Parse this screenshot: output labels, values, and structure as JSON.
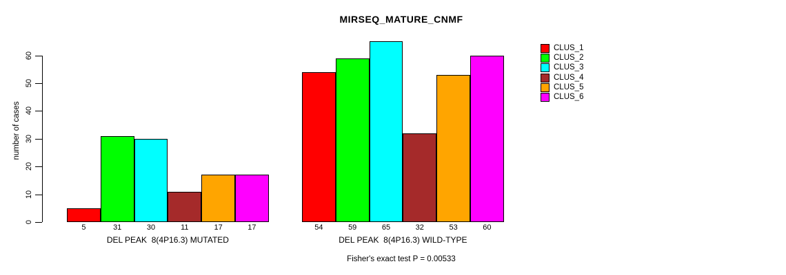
{
  "title": "MIRSEQ_MATURE_CNMF",
  "chart_data": {
    "type": "bar",
    "title": "MIRSEQ_MATURE_CNMF",
    "xlabel": "",
    "ylabel": "number of cases",
    "ylim": [
      0,
      60
    ],
    "yticks": [
      0,
      10,
      20,
      30,
      40,
      50,
      60
    ],
    "grid": false,
    "legend_position": "top-right-inside",
    "bar_border_color": "#000000",
    "series": [
      {
        "name": "CLUS_1",
        "color": "#FF0000"
      },
      {
        "name": "CLUS_2",
        "color": "#00FF00"
      },
      {
        "name": "CLUS_3",
        "color": "#00FFFF"
      },
      {
        "name": "CLUS_4",
        "color": "#A52A2A"
      },
      {
        "name": "CLUS_5",
        "color": "#FFA500"
      },
      {
        "name": "CLUS_6",
        "color": "#FF00FF"
      }
    ],
    "groups": [
      {
        "label": "DEL PEAK  8(4P16.3) MUTATED",
        "values": [
          5,
          31,
          30,
          11,
          17,
          17
        ]
      },
      {
        "label": "DEL PEAK  8(4P16.3) WILD-TYPE",
        "values": [
          54,
          59,
          65,
          32,
          53,
          60
        ]
      }
    ],
    "annotation": "Fisher's exact test P = 0.00533"
  }
}
